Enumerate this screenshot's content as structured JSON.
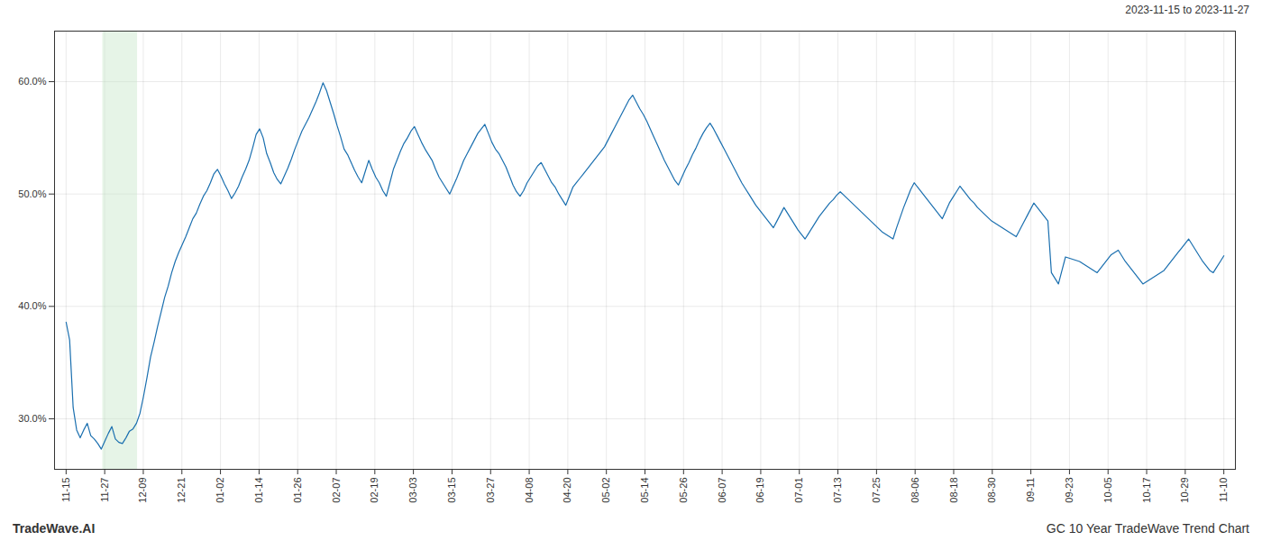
{
  "chart_data": {
    "type": "line",
    "annotations": [
      "2023-11-15 to 2023-11-27",
      "TradeWave.AI",
      "GC 10 Year TradeWave Trend Chart"
    ],
    "color": "#1a6faf",
    "grid": true,
    "highlight": {
      "start": 0.95,
      "end": 1.85,
      "color": "#c8e6c9"
    },
    "xlim": [
      -0.3,
      30.3
    ],
    "xticks": [
      {
        "value": 0,
        "label": "11-15"
      },
      {
        "value": 1,
        "label": "11-27"
      },
      {
        "value": 2,
        "label": "12-09"
      },
      {
        "value": 3,
        "label": "12-21"
      },
      {
        "value": 4,
        "label": "01-02"
      },
      {
        "value": 5,
        "label": "01-14"
      },
      {
        "value": 6,
        "label": "01-26"
      },
      {
        "value": 7,
        "label": "02-07"
      },
      {
        "value": 8,
        "label": "02-19"
      },
      {
        "value": 9,
        "label": "03-03"
      },
      {
        "value": 10,
        "label": "03-15"
      },
      {
        "value": 11,
        "label": "03-27"
      },
      {
        "value": 12,
        "label": "04-08"
      },
      {
        "value": 13,
        "label": "04-20"
      },
      {
        "value": 14,
        "label": "05-02"
      },
      {
        "value": 15,
        "label": "05-14"
      },
      {
        "value": 16,
        "label": "05-26"
      },
      {
        "value": 17,
        "label": "06-07"
      },
      {
        "value": 18,
        "label": "06-19"
      },
      {
        "value": 19,
        "label": "07-01"
      },
      {
        "value": 20,
        "label": "07-13"
      },
      {
        "value": 21,
        "label": "07-25"
      },
      {
        "value": 22,
        "label": "08-06"
      },
      {
        "value": 23,
        "label": "08-18"
      },
      {
        "value": 24,
        "label": "08-30"
      },
      {
        "value": 25,
        "label": "09-11"
      },
      {
        "value": 26,
        "label": "09-23"
      },
      {
        "value": 27,
        "label": "10-05"
      },
      {
        "value": 28,
        "label": "10-17"
      },
      {
        "value": 29,
        "label": "10-29"
      },
      {
        "value": 30,
        "label": "11-10"
      }
    ],
    "ylim": [
      0.255,
      0.645
    ],
    "yticks": [
      {
        "value": 0.3,
        "label": "30.0%"
      },
      {
        "value": 0.4,
        "label": "40.0%"
      },
      {
        "value": 0.5,
        "label": "50.0%"
      },
      {
        "value": 0.6,
        "label": "60.0%"
      }
    ],
    "values": [
      0.386,
      0.37,
      0.31,
      0.29,
      0.283,
      0.29,
      0.296,
      0.285,
      0.282,
      0.278,
      0.273,
      0.28,
      0.287,
      0.293,
      0.282,
      0.279,
      0.278,
      0.283,
      0.289,
      0.291,
      0.296,
      0.305,
      0.32,
      0.337,
      0.355,
      0.368,
      0.382,
      0.395,
      0.408,
      0.418,
      0.43,
      0.44,
      0.448,
      0.455,
      0.462,
      0.47,
      0.478,
      0.483,
      0.491,
      0.498,
      0.503,
      0.51,
      0.518,
      0.522,
      0.516,
      0.509,
      0.503,
      0.496,
      0.501,
      0.507,
      0.515,
      0.522,
      0.53,
      0.541,
      0.553,
      0.558,
      0.55,
      0.536,
      0.528,
      0.519,
      0.513,
      0.509,
      0.516,
      0.523,
      0.531,
      0.54,
      0.548,
      0.556,
      0.562,
      0.568,
      0.575,
      0.582,
      0.59,
      0.599,
      0.592,
      0.582,
      0.572,
      0.561,
      0.551,
      0.54,
      0.535,
      0.528,
      0.521,
      0.515,
      0.51,
      0.52,
      0.53,
      0.522,
      0.515,
      0.51,
      0.503,
      0.498,
      0.51,
      0.522,
      0.53,
      0.538,
      0.545,
      0.55,
      0.556,
      0.56,
      0.553,
      0.546,
      0.54,
      0.535,
      0.53,
      0.522,
      0.515,
      0.51,
      0.505,
      0.5,
      0.507,
      0.514,
      0.522,
      0.53,
      0.536,
      0.542,
      0.548,
      0.554,
      0.558,
      0.562,
      0.554,
      0.546,
      0.54,
      0.536,
      0.53,
      0.524,
      0.516,
      0.508,
      0.502,
      0.498,
      0.503,
      0.51,
      0.515,
      0.52,
      0.525,
      0.528,
      0.522,
      0.516,
      0.51,
      0.506,
      0.5,
      0.495,
      0.49,
      0.498,
      0.506,
      0.51,
      0.514,
      0.518,
      0.522,
      0.526,
      0.53,
      0.534,
      0.538,
      0.542,
      0.548,
      0.554,
      0.56,
      0.566,
      0.572,
      0.578,
      0.584,
      0.588,
      0.582,
      0.576,
      0.571,
      0.565,
      0.558,
      0.551,
      0.544,
      0.537,
      0.53,
      0.524,
      0.518,
      0.512,
      0.508,
      0.515,
      0.522,
      0.528,
      0.535,
      0.541,
      0.548,
      0.554,
      0.559,
      0.563,
      0.558,
      0.552,
      0.546,
      0.54,
      0.534,
      0.528,
      0.522,
      0.516,
      0.51,
      0.505,
      0.5,
      0.495,
      0.49,
      0.486,
      0.482,
      0.478,
      0.474,
      0.47,
      0.476,
      0.482,
      0.488,
      0.483,
      0.478,
      0.473,
      0.468,
      0.464,
      0.46,
      0.465,
      0.47,
      0.475,
      0.48,
      0.484,
      0.488,
      0.492,
      0.495,
      0.499,
      0.502,
      0.499,
      0.496,
      0.493,
      0.49,
      0.487,
      0.484,
      0.481,
      0.478,
      0.475,
      0.472,
      0.469,
      0.466,
      0.464,
      0.462,
      0.46,
      0.47,
      0.479,
      0.488,
      0.496,
      0.504,
      0.51,
      0.506,
      0.502,
      0.498,
      0.494,
      0.49,
      0.486,
      0.482,
      0.478,
      0.485,
      0.492,
      0.497,
      0.502,
      0.507,
      0.503,
      0.499,
      0.495,
      0.492,
      0.488,
      0.485,
      0.482,
      0.479,
      0.476,
      0.474,
      0.472,
      0.47,
      0.468,
      0.466,
      0.464,
      0.462,
      0.468,
      0.474,
      0.48,
      0.486,
      0.492,
      0.488,
      0.484,
      0.48,
      0.476,
      0.43,
      0.425,
      0.42,
      0.432,
      0.444,
      0.443,
      0.442,
      0.441,
      0.44,
      0.438,
      0.436,
      0.434,
      0.432,
      0.43,
      0.434,
      0.438,
      0.442,
      0.446,
      0.448,
      0.45,
      0.445,
      0.44,
      0.436,
      0.432,
      0.428,
      0.424,
      0.42,
      0.422,
      0.424,
      0.426,
      0.428,
      0.43,
      0.432,
      0.436,
      0.44,
      0.444,
      0.448,
      0.452,
      0.456,
      0.46,
      0.455,
      0.45,
      0.445,
      0.44,
      0.436,
      0.432,
      0.43,
      0.435,
      0.44,
      0.445
    ]
  }
}
